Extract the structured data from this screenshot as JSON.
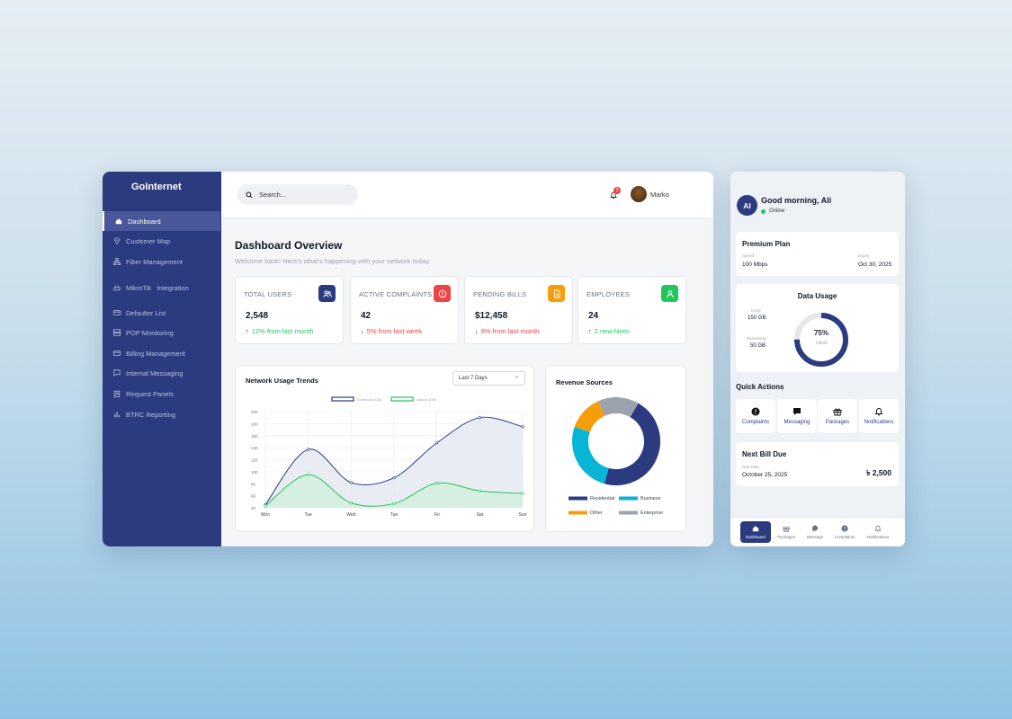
{
  "app": {
    "brand": "GoInternet"
  },
  "sidebar": {
    "items": [
      {
        "label": "Dashboard",
        "icon": "home-icon"
      },
      {
        "label": "Customer Map",
        "icon": "map-pin-icon"
      },
      {
        "label": "Fiber Management",
        "icon": "network-icon"
      },
      {
        "label": "MikroTik   Integration",
        "icon": "router-icon"
      },
      {
        "label": "Defaulter List",
        "icon": "card-icon"
      },
      {
        "label": "POP Monitoring",
        "icon": "server-icon"
      },
      {
        "label": "Billing Management",
        "icon": "card-icon"
      },
      {
        "label": "Internal Messaging",
        "icon": "message-icon"
      },
      {
        "label": "Request Panels",
        "icon": "clipboard-icon"
      },
      {
        "label": "BTRC Reporting",
        "icon": "bar-chart-icon"
      }
    ]
  },
  "header": {
    "search_placeholder": "Search...",
    "notification_count": "3",
    "user_name": "Marko"
  },
  "page": {
    "title": "Dashboard Overview",
    "subtitle": "Welcome back! Here's what's happening with your network today."
  },
  "stats": [
    {
      "label": "TOTAL USERS",
      "value": "2,548",
      "arrow": "↑",
      "change": "12% from last month",
      "change_color": "#22c55e",
      "icon_bg": "#2c3a80",
      "icon": "users-icon"
    },
    {
      "label": "ACTIVE COMPLAINTS",
      "value": "42",
      "arrow": "↓",
      "change": "5% from last week",
      "change_color": "#ef4444",
      "icon_bg": "#ef4444",
      "icon": "alert-icon"
    },
    {
      "label": "PENDING BILLS",
      "value": "$12,458",
      "arrow": "↓",
      "change": "8% from last month",
      "change_color": "#ef4444",
      "icon_bg": "#f59e0b",
      "icon": "file-icon"
    },
    {
      "label": "EMPLOYEES",
      "value": "24",
      "arrow": "↑",
      "change": "2 new hires",
      "change_color": "#22c55e",
      "icon_bg": "#22c55e",
      "icon": "user-icon"
    }
  ],
  "usage": {
    "title": "Network Usage Trends",
    "range": "Last 7 Days"
  },
  "revenue": {
    "title": "Revenue Sources"
  },
  "chart_data": [
    {
      "type": "line",
      "title": "Network Usage Trends",
      "x": [
        "Mon",
        "Tue",
        "Wed",
        "Tue",
        "Fri",
        "Sat",
        "Sun"
      ],
      "ylim": [
        40,
        200
      ],
      "yticks": [
        40,
        60,
        80,
        100,
        120,
        140,
        160,
        180,
        200
      ],
      "series": [
        {
          "name": "Download (GB)",
          "color": "#2c3a80",
          "fill": "#e5e7f0",
          "values": [
            45,
            137,
            82,
            90,
            148,
            190,
            175
          ]
        },
        {
          "name": "Upload (GB)",
          "color": "#22c55e",
          "fill": "#d1f0dc",
          "values": [
            43,
            95,
            48,
            47,
            81,
            68,
            64
          ]
        }
      ],
      "grid": true,
      "legend": "top"
    },
    {
      "type": "pie",
      "title": "Revenue Sources",
      "labels": [
        "Residential",
        "Business",
        "Other",
        "Enterprise"
      ],
      "values": [
        46,
        26,
        13,
        15
      ],
      "colors": [
        "#2c3a80",
        "#06b6d4",
        "#f59e0b",
        "#9ca3af"
      ],
      "legend": "bottom"
    }
  ],
  "mobile": {
    "avatar": "AI",
    "greeting": "Good morning, Ali",
    "status": "Online",
    "plan": {
      "title": "Premium Plan",
      "speed_label": "Speed",
      "speed": "100 Mbps",
      "expiry_label": "Expiry",
      "expiry": "Oct 30, 2025"
    },
    "data_usage": {
      "title": "Data Usage",
      "used_label": "Used",
      "used": "150 GB",
      "remaining_label": "Remaining",
      "remaining": "50 GB",
      "percent_text": "75%",
      "percent": 75,
      "center_label": "Used"
    },
    "quick_actions": {
      "title": "Quick Actions",
      "items": [
        {
          "label": "Complaints",
          "icon": "alert-icon"
        },
        {
          "label": "Messaging",
          "icon": "chat-icon"
        },
        {
          "label": "Packages",
          "icon": "gift-icon"
        },
        {
          "label": "Notifications",
          "icon": "bell-icon"
        }
      ]
    },
    "bill": {
      "title": "Next Bill Due",
      "due_label": "Due Date",
      "due_date": "October 25, 2025",
      "amount": "৳ 2,500"
    },
    "tabs": [
      "Dashboard",
      "Packages",
      "Message",
      "Complaints",
      "Notifications"
    ]
  }
}
